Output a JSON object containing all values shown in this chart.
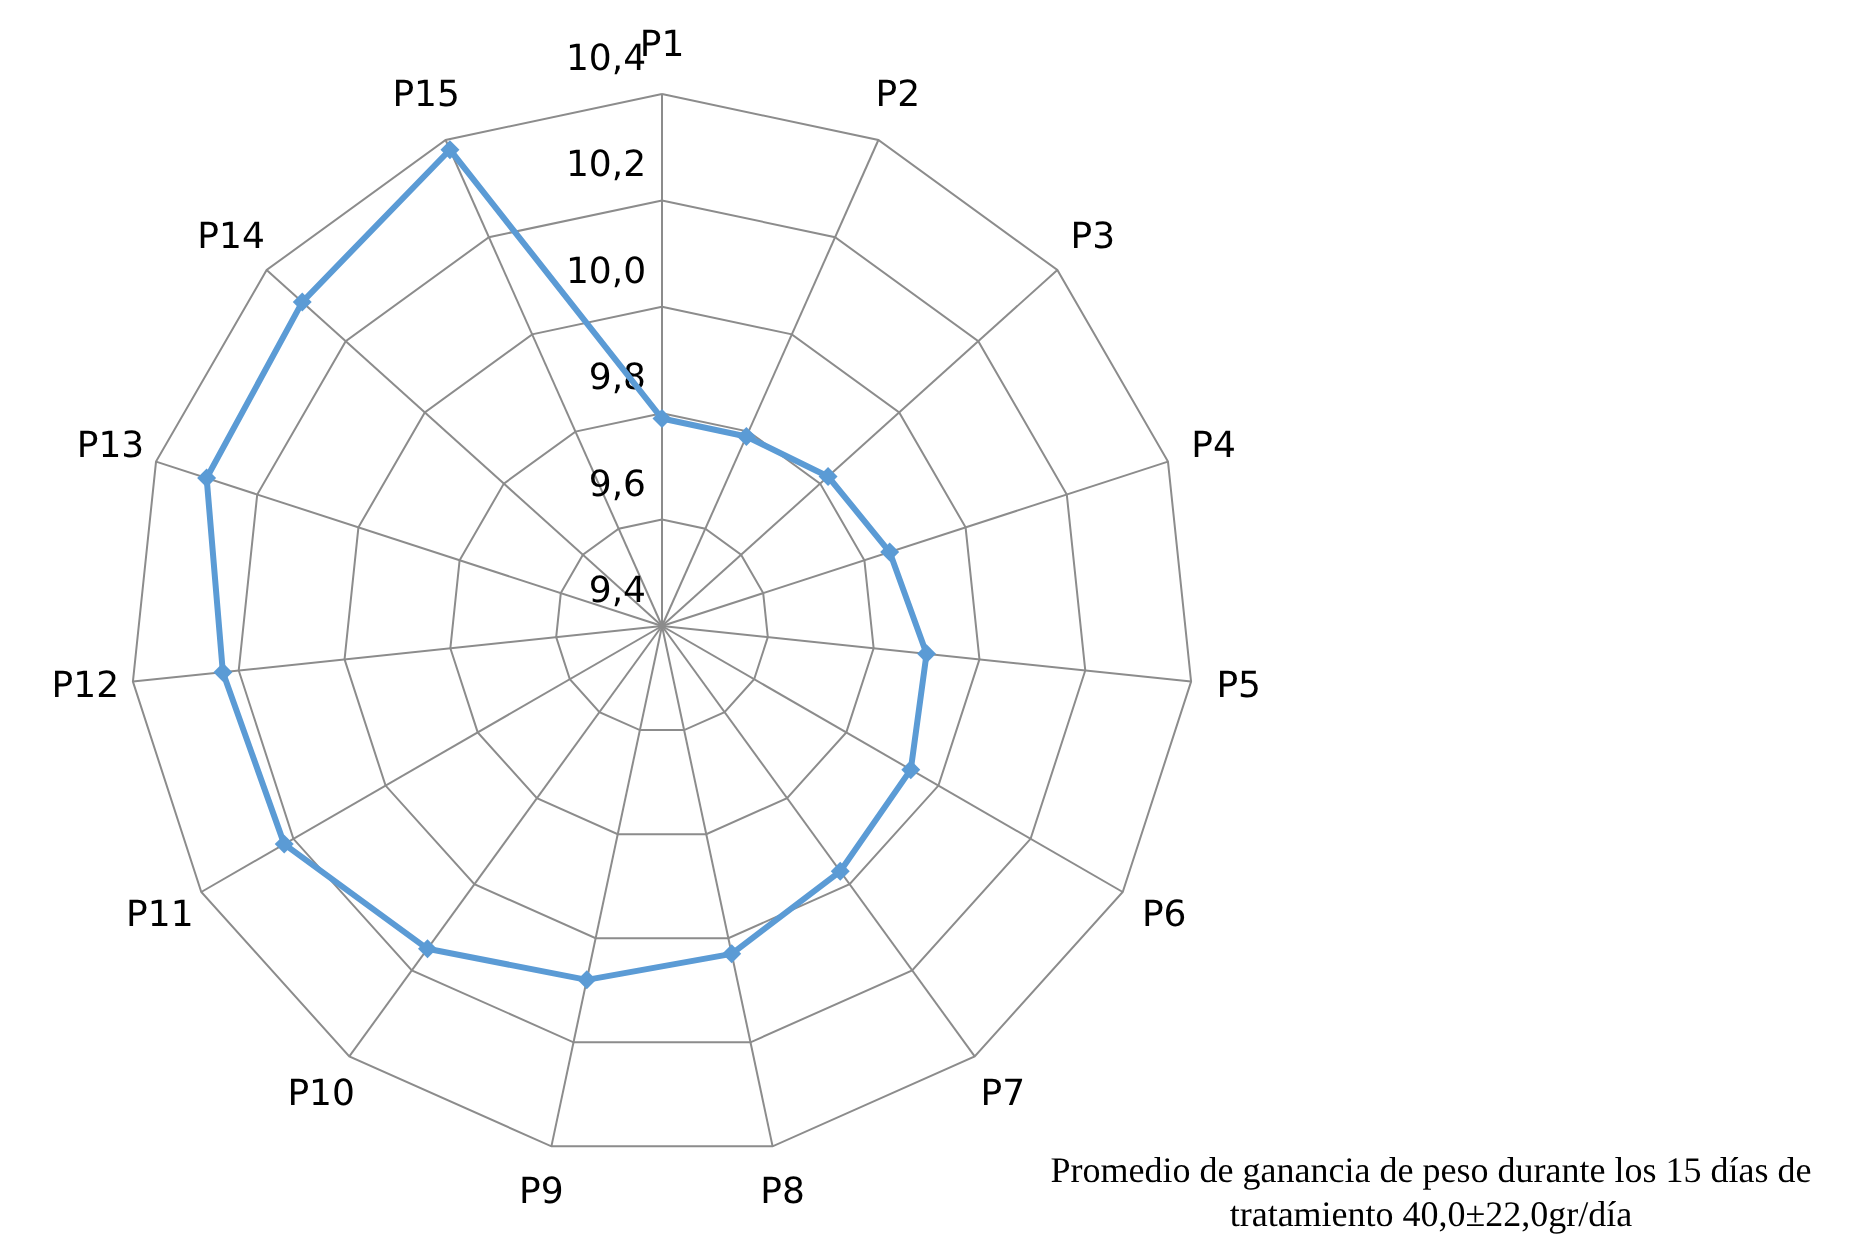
{
  "chart_data": {
    "type": "radar",
    "categories": [
      "P1",
      "P2",
      "P3",
      "P4",
      "P5",
      "P6",
      "P7",
      "P8",
      "P9",
      "P10",
      "P11",
      "P12",
      "P13",
      "P14",
      "P15"
    ],
    "series": [
      {
        "color": "#5b9bd5",
        "values": [
          9.79,
          9.79,
          9.82,
          9.85,
          9.9,
          9.94,
          9.97,
          10.03,
          10.08,
          10.15,
          10.22,
          10.23,
          10.3,
          10.31,
          10.38
        ]
      }
    ],
    "ylim": [
      9.4,
      10.4
    ],
    "yticks": [
      {
        "value": 9.4,
        "label": "9,4"
      },
      {
        "value": 9.6,
        "label": "9,6"
      },
      {
        "value": 9.8,
        "label": "9,8"
      },
      {
        "value": 10.0,
        "label": "10,0"
      },
      {
        "value": 10.2,
        "label": "10,2"
      },
      {
        "value": 10.4,
        "label": "10,4"
      }
    ],
    "grid": true,
    "marker": "diamond",
    "annotations": [
      "Promedio de ganancia de peso durante los 15 días de tratamiento 40,0±22,0gr/día"
    ]
  }
}
